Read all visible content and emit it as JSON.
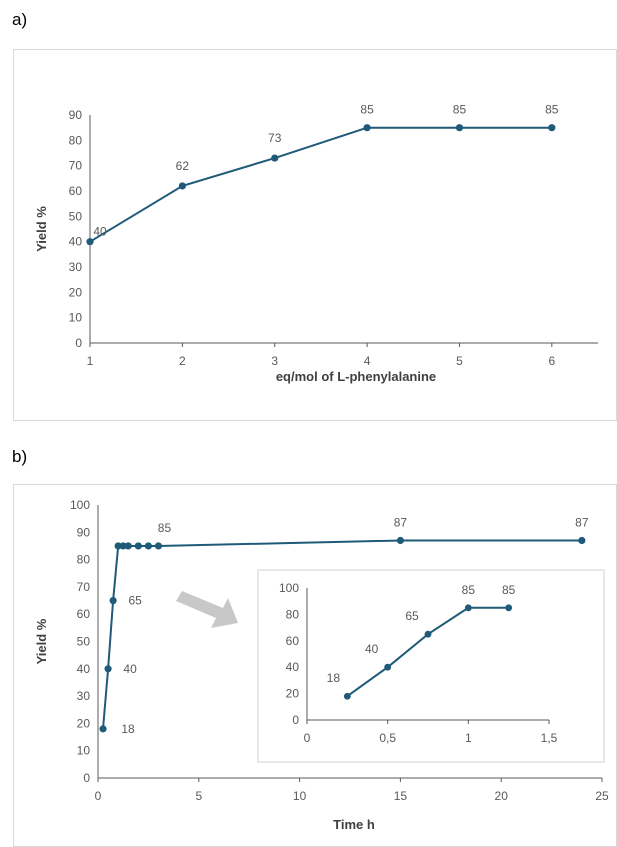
{
  "panel_labels": {
    "a": "a)",
    "b": "b)"
  },
  "chart_data": [
    {
      "type": "line",
      "title": "",
      "xlabel": "eq/mol of L-phenylalanine",
      "ylabel": "Yield %",
      "x": [
        1,
        2,
        3,
        4,
        5,
        6
      ],
      "series": [
        {
          "values": [
            40,
            62,
            73,
            85,
            85,
            85
          ],
          "data_labels": [
            "40",
            "62",
            "73",
            "85",
            "85",
            "85"
          ]
        }
      ],
      "xlim": [
        1,
        6.5
      ],
      "ylim": [
        0,
        90
      ],
      "x_ticks": [
        1,
        2,
        3,
        4,
        5,
        6
      ],
      "x_tick_labels": [
        "1",
        "2",
        "3",
        "4",
        "5",
        "6"
      ],
      "y_ticks": [
        0,
        10,
        20,
        30,
        40,
        50,
        60,
        70,
        80,
        90
      ],
      "y_tick_labels": [
        "0",
        "10",
        "20",
        "30",
        "40",
        "50",
        "60",
        "70",
        "80",
        "90"
      ],
      "grid": false,
      "color": "#1f5a78"
    },
    {
      "type": "line",
      "title": "",
      "xlabel": "Time h",
      "ylabel": "Yield %",
      "x": [
        0.25,
        0.5,
        0.75,
        1,
        1.25,
        1.5,
        2,
        2.5,
        3,
        15,
        24
      ],
      "series": [
        {
          "values": [
            18,
            40,
            65,
            85,
            85,
            85,
            85,
            85,
            85,
            87,
            87
          ],
          "data_labels": [
            "18",
            "40",
            "65",
            "",
            "",
            "",
            "",
            "",
            "85",
            "87",
            "87"
          ]
        }
      ],
      "xlim": [
        0,
        25
      ],
      "ylim": [
        0,
        100
      ],
      "x_ticks": [
        0,
        5,
        10,
        15,
        20,
        25
      ],
      "x_tick_labels": [
        "0",
        "5",
        "10",
        "15",
        "20",
        "25"
      ],
      "y_ticks": [
        0,
        10,
        20,
        30,
        40,
        50,
        60,
        70,
        80,
        90,
        100
      ],
      "y_tick_labels": [
        "0",
        "10",
        "20",
        "30",
        "40",
        "50",
        "60",
        "70",
        "80",
        "90",
        "100"
      ],
      "grid": false,
      "color": "#1f5a78"
    },
    {
      "type": "line",
      "title": "",
      "xlabel": "",
      "ylabel": "",
      "x": [
        0.25,
        0.5,
        0.75,
        1,
        1.25
      ],
      "series": [
        {
          "values": [
            18,
            40,
            65,
            85,
            85
          ],
          "data_labels": [
            "18",
            "40",
            "65",
            "85",
            "85"
          ]
        }
      ],
      "xlim": [
        0,
        1.5
      ],
      "ylim": [
        0,
        100
      ],
      "x_ticks": [
        0,
        0.5,
        1,
        1.5
      ],
      "x_tick_labels": [
        "0",
        "0,5",
        "1",
        "1,5"
      ],
      "y_ticks": [
        0,
        20,
        40,
        60,
        80,
        100
      ],
      "y_tick_labels": [
        "0",
        "20",
        "40",
        "60",
        "80",
        "100"
      ],
      "grid": false,
      "color": "#1f5a78"
    }
  ]
}
